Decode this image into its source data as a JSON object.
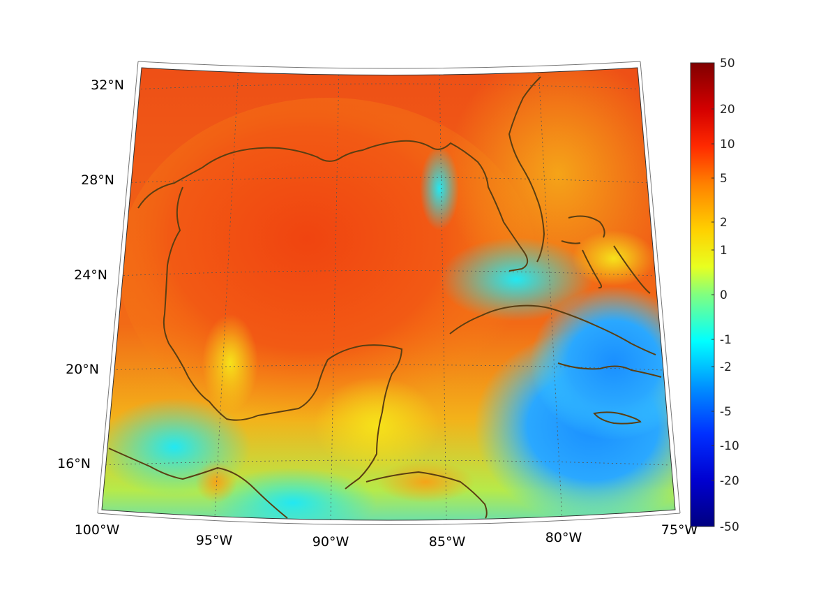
{
  "map": {
    "lat_labels": [
      "32°N",
      "28°N",
      "24°N",
      "20°N",
      "16°N"
    ],
    "lon_labels": [
      "100°W",
      "95°W",
      "90°W",
      "85°W",
      "80°W",
      "75°W"
    ],
    "extent": {
      "lon_min": -100,
      "lon_max": -75,
      "lat_min": 14,
      "lat_max": 32.7
    },
    "projection": "conic",
    "gridlines": "dotted",
    "coastline_color": "#5a3e12",
    "colormap": "jet"
  },
  "colorbar": {
    "ticks": [
      "50",
      "20",
      "10",
      "5",
      "2",
      "1",
      "0",
      "-1",
      "-2",
      "-5",
      "-10",
      "-20",
      "-50"
    ],
    "colors": [
      "#800000",
      "#ff0000",
      "#ff8000",
      "#ffff00",
      "#80ff80",
      "#00ffff",
      "#0080ff",
      "#0000ff",
      "#000080"
    ]
  }
}
